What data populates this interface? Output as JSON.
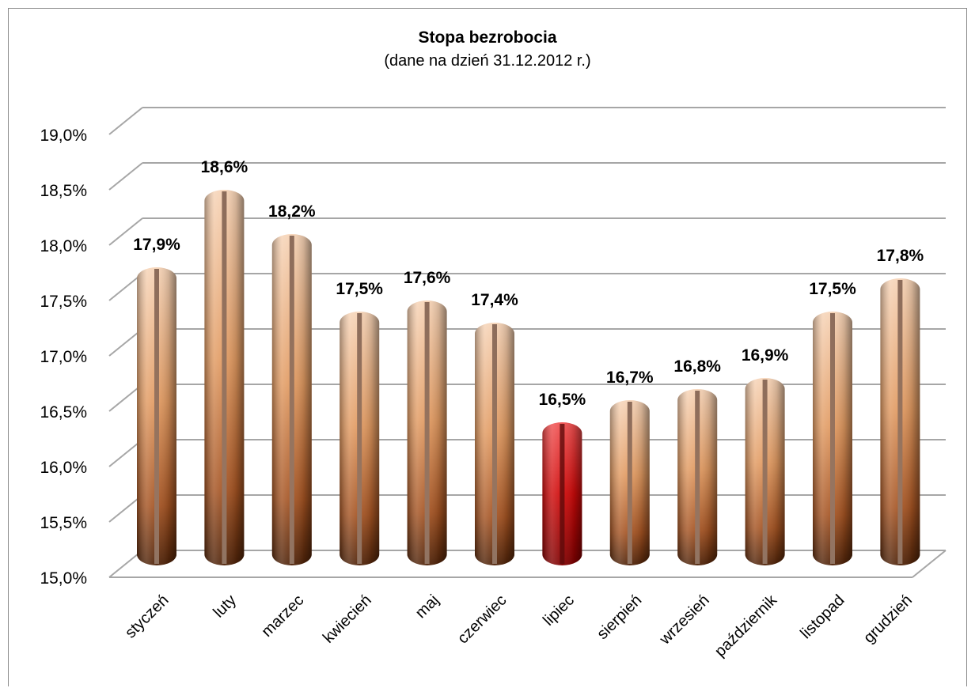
{
  "chart_data": {
    "type": "bar",
    "title": "Stopa bezrobocia",
    "subtitle": "(dane na dzień 31.12.2012 r.)",
    "categories": [
      "styczeń",
      "luty",
      "marzec",
      "kwiecień",
      "maj",
      "czerwiec",
      "lipiec",
      "sierpień",
      "wrzesień",
      "październik",
      "listopad",
      "grudzień"
    ],
    "values": [
      17.9,
      18.6,
      18.2,
      17.5,
      17.6,
      17.4,
      16.5,
      16.7,
      16.8,
      16.9,
      17.5,
      17.8
    ],
    "data_labels": [
      "17,9%",
      "18,6%",
      "18,2%",
      "17,5%",
      "17,6%",
      "17,4%",
      "16,5%",
      "16,7%",
      "16,8%",
      "16,9%",
      "17,5%",
      "17,8%"
    ],
    "y_ticks": [
      15.0,
      15.5,
      16.0,
      16.5,
      17.0,
      17.5,
      18.0,
      18.5,
      19.0
    ],
    "y_tick_labels": [
      "15,0%",
      "15,5%",
      "16,0%",
      "16,5%",
      "17,0%",
      "17,5%",
      "18,0%",
      "18,5%",
      "19,0%"
    ],
    "ylim": [
      15.0,
      19.0
    ],
    "xlabel": "",
    "ylabel": "",
    "grid": true,
    "legend": "none",
    "highlight_index": 6,
    "colors": {
      "bar_light": "#f3c9a4",
      "bar_mid": "#d98a52",
      "bar_dark": "#5a2a0c",
      "highlight_light": "#ef4a4a",
      "highlight_dark": "#8e0000",
      "grid": "#a6a6a6"
    }
  }
}
